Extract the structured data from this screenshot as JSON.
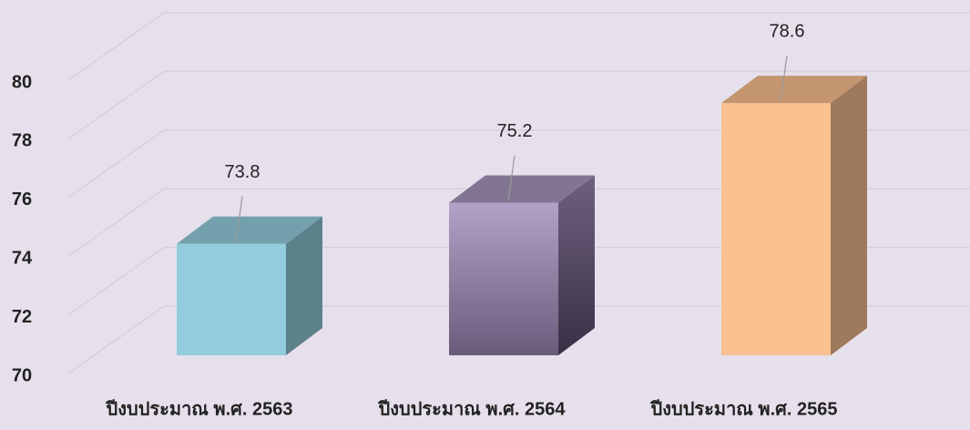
{
  "chart_data": {
    "type": "bar3d",
    "categories": [
      "ปีงบประมาณ พ.ศ. 2563",
      "ปีงบประมาณ พ.ศ. 2564",
      "ปีงบประมาณ พ.ศ. 2565"
    ],
    "values": [
      73.8,
      75.2,
      78.6
    ],
    "colors": [
      "#93cddd",
      "#a796bd",
      "#fac090"
    ],
    "ylim": [
      70,
      80
    ],
    "yticks": [
      70,
      72,
      74,
      76,
      78,
      80
    ],
    "grid": true
  }
}
